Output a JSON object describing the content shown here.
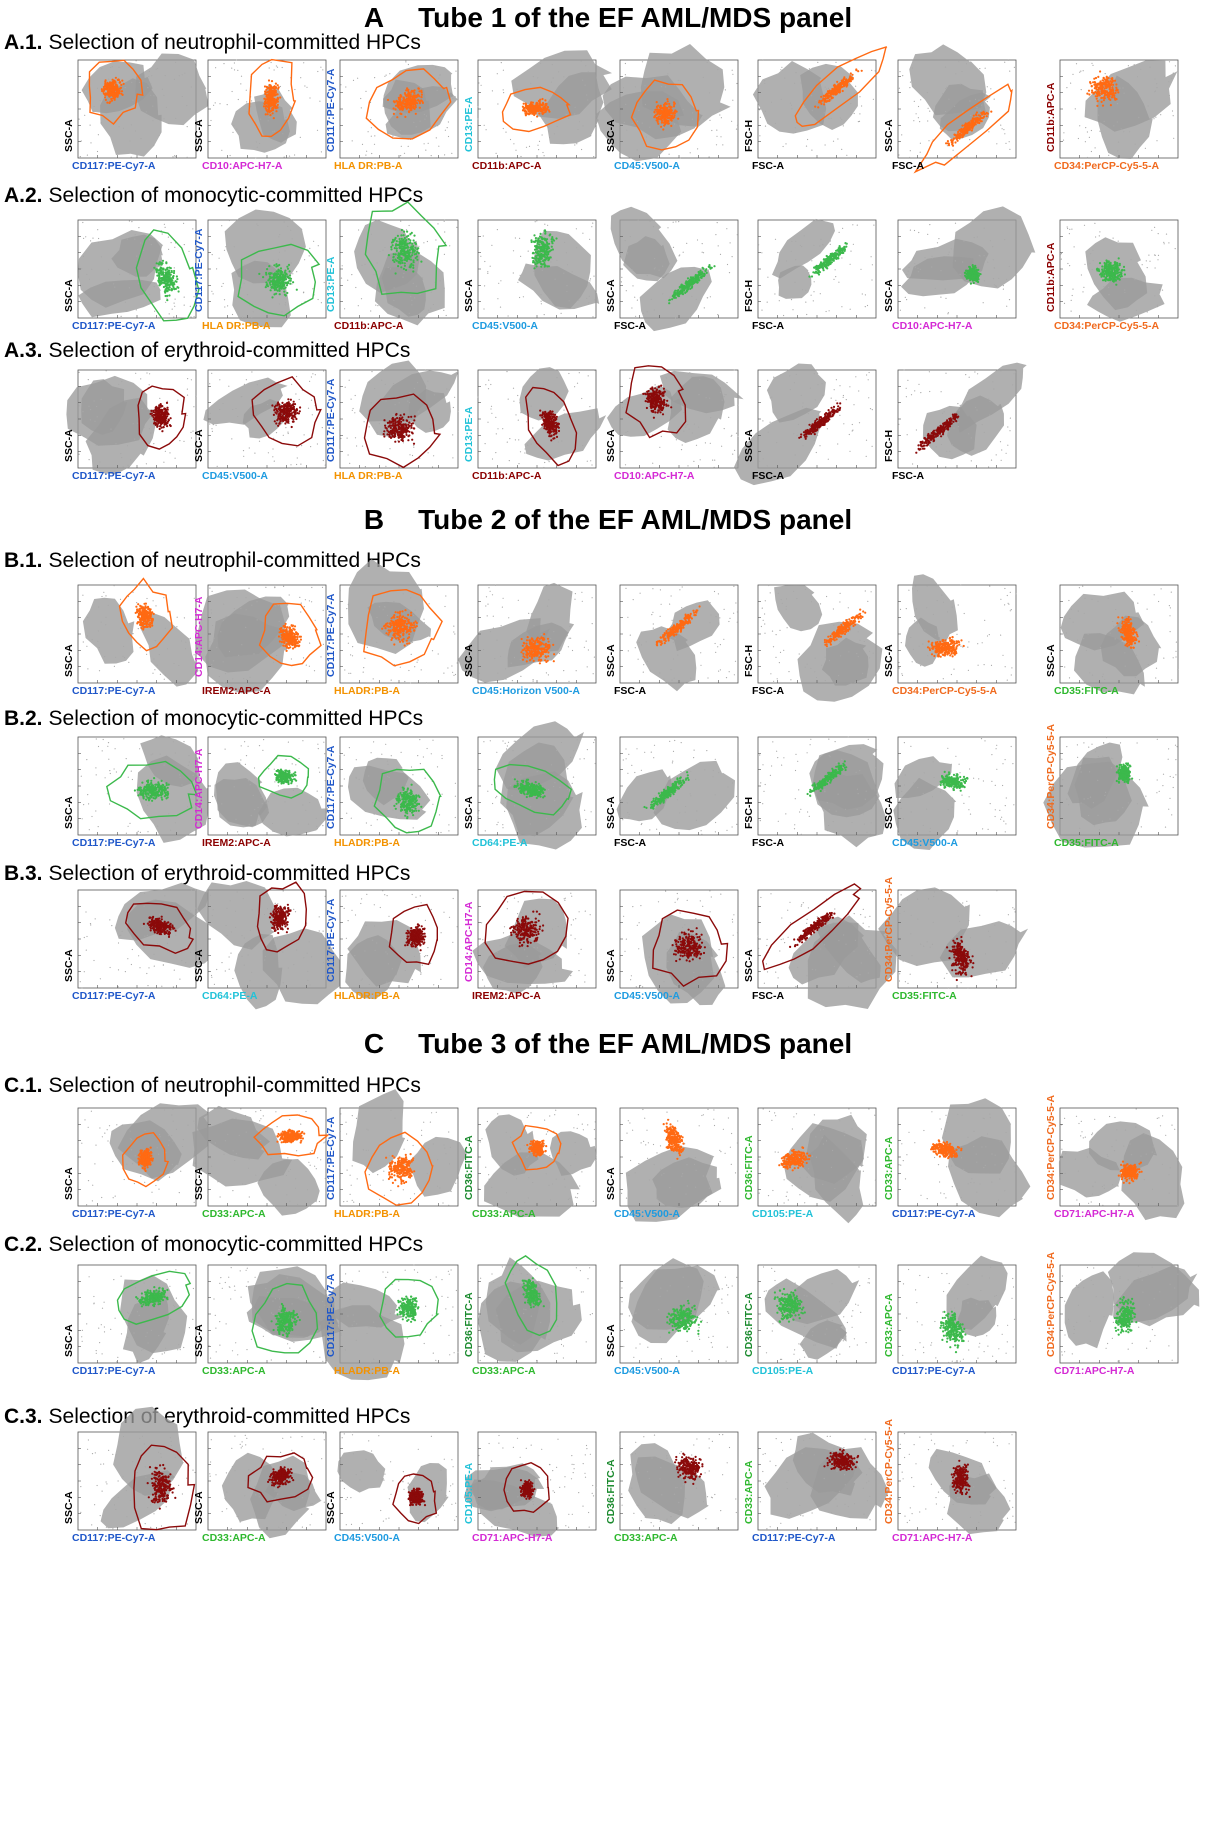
{
  "sections": [
    {
      "letter": "A",
      "title": "Tube 1 of the EF AML/MDS panel",
      "rows": [
        {
          "num": "A.1.",
          "label": "Selection of neutrophil-committed HPCs",
          "color": "#ff6a13",
          "plots": [
            {
              "x": "CD117:PE-Cy7-A",
              "xc": "#1f57c9",
              "y": "SSC-A",
              "yc": "#000000",
              "gate": true
            },
            {
              "x": "CD10:APC-H7-A",
              "xc": "#d42ad4",
              "y": "SSC-A",
              "yc": "#000000",
              "gate": true
            },
            {
              "x": "HLA DR:PB-A",
              "xc": "#f39200",
              "y": "CD117:PE-Cy7-A",
              "yc": "#1f57c9",
              "gate": true
            },
            {
              "x": "CD11b:APC-A",
              "xc": "#8b0000",
              "y": "CD13:PE-A",
              "yc": "#22c2d8",
              "gate": true
            },
            {
              "x": "CD45:V500-A",
              "xc": "#1e9be0",
              "y": "SSC-A",
              "yc": "#000000",
              "gate": true
            },
            {
              "x": "FSC-A",
              "xc": "#000000",
              "y": "FSC-H",
              "yc": "#000000",
              "gate": true
            },
            {
              "x": "FSC-A",
              "xc": "#000000",
              "y": "SSC-A",
              "yc": "#000000",
              "gate": true
            },
            {
              "x": "CD34:PerCP-Cy5-5-A",
              "xc": "#f06a1e",
              "y": "CD11b:APC-A",
              "yc": "#8b0000",
              "gate": false
            }
          ]
        },
        {
          "num": "A.2.",
          "label": "Selection of monocytic-committed HPCs",
          "color": "#3cb94c",
          "plots": [
            {
              "x": "CD117:PE-Cy7-A",
              "xc": "#1f57c9",
              "y": "SSC-A",
              "yc": "#000000",
              "gate": true
            },
            {
              "x": "HLA DR:PB-A",
              "xc": "#f39200",
              "y": "CD117:PE-Cy7-A",
              "yc": "#1f57c9",
              "gate": true
            },
            {
              "x": "CD11b:APC-A",
              "xc": "#8b0000",
              "y": "CD13:PE-A",
              "yc": "#22c2d8",
              "gate": true
            },
            {
              "x": "CD45:V500-A",
              "xc": "#1e9be0",
              "y": "SSC-A",
              "yc": "#000000",
              "gate": false
            },
            {
              "x": "FSC-A",
              "xc": "#000000",
              "y": "SSC-A",
              "yc": "#000000",
              "gate": false
            },
            {
              "x": "FSC-A",
              "xc": "#000000",
              "y": "FSC-H",
              "yc": "#000000",
              "gate": false
            },
            {
              "x": "CD10:APC-H7-A",
              "xc": "#d42ad4",
              "y": "SSC-A",
              "yc": "#000000",
              "gate": false
            },
            {
              "x": "CD34:PerCP-Cy5-5-A",
              "xc": "#f06a1e",
              "y": "CD11b:APC-A",
              "yc": "#8b0000",
              "gate": false
            }
          ]
        },
        {
          "num": "A.3.",
          "label": "Selection of erythroid-committed HPCs",
          "color": "#8b0a0a",
          "plots": [
            {
              "x": "CD117:PE-Cy7-A",
              "xc": "#1f57c9",
              "y": "SSC-A",
              "yc": "#000000",
              "gate": true
            },
            {
              "x": "CD45:V500-A",
              "xc": "#1e9be0",
              "y": "SSC-A",
              "yc": "#000000",
              "gate": true
            },
            {
              "x": "HLA DR:PB-A",
              "xc": "#f39200",
              "y": "CD117:PE-Cy7-A",
              "yc": "#1f57c9",
              "gate": true
            },
            {
              "x": "CD11b:APC-A",
              "xc": "#8b0000",
              "y": "CD13:PE-A",
              "yc": "#22c2d8",
              "gate": true
            },
            {
              "x": "CD10:APC-H7-A",
              "xc": "#d42ad4",
              "y": "SSC-A",
              "yc": "#000000",
              "gate": true
            },
            {
              "x": "FSC-A",
              "xc": "#000000",
              "y": "SSC-A",
              "yc": "#000000",
              "gate": false
            },
            {
              "x": "FSC-A",
              "xc": "#000000",
              "y": "FSC-H",
              "yc": "#000000",
              "gate": false
            }
          ]
        }
      ]
    },
    {
      "letter": "B",
      "title": "Tube 2 of the EF AML/MDS panel",
      "rows": [
        {
          "num": "B.1.",
          "label": "Selection of neutrophil-committed HPCs",
          "color": "#ff6a13",
          "plots": [
            {
              "x": "CD117:PE-Cy7-A",
              "xc": "#1f57c9",
              "y": "SSC-A",
              "yc": "#000000",
              "gate": true
            },
            {
              "x": "IREM2:APC-A",
              "xc": "#8b0000",
              "y": "CD14:APC-H7-A",
              "yc": "#d42ad4",
              "gate": true
            },
            {
              "x": "HLADR:PB-A",
              "xc": "#f39200",
              "y": "CD117:PE-Cy7-A",
              "yc": "#1f57c9",
              "gate": true
            },
            {
              "x": "CD45:Horizon V500-A",
              "xc": "#1e9be0",
              "y": "SSC-A",
              "yc": "#000000",
              "gate": false
            },
            {
              "x": "FSC-A",
              "xc": "#000000",
              "y": "SSC-A",
              "yc": "#000000",
              "gate": false
            },
            {
              "x": "FSC-A",
              "xc": "#000000",
              "y": "FSC-H",
              "yc": "#000000",
              "gate": false
            },
            {
              "x": "CD34:PerCP-Cy5-5-A",
              "xc": "#f06a1e",
              "y": "SSC-A",
              "yc": "#000000",
              "gate": false
            },
            {
              "x": "CD35:FITC-A",
              "xc": "#2fb82f",
              "y": "SSC-A",
              "yc": "#000000",
              "gate": false
            }
          ]
        },
        {
          "num": "B.2.",
          "label": "Selection of monocytic-committed HPCs",
          "color": "#3cb94c",
          "plots": [
            {
              "x": "CD117:PE-Cy7-A",
              "xc": "#1f57c9",
              "y": "SSC-A",
              "yc": "#000000",
              "gate": true
            },
            {
              "x": "IREM2:APC-A",
              "xc": "#8b0000",
              "y": "CD14:APC-H7-A",
              "yc": "#d42ad4",
              "gate": true
            },
            {
              "x": "HLADR:PB-A",
              "xc": "#f39200",
              "y": "CD117:PE-Cy7-A",
              "yc": "#1f57c9",
              "gate": true
            },
            {
              "x": "CD64:PE-A",
              "xc": "#22c2d8",
              "y": "SSC-A",
              "yc": "#000000",
              "gate": true
            },
            {
              "x": "FSC-A",
              "xc": "#000000",
              "y": "SSC-A",
              "yc": "#000000",
              "gate": false
            },
            {
              "x": "FSC-A",
              "xc": "#000000",
              "y": "FSC-H",
              "yc": "#000000",
              "gate": false
            },
            {
              "x": "CD45:V500-A",
              "xc": "#1e9be0",
              "y": "SSC-A",
              "yc": "#000000",
              "gate": false
            },
            {
              "x": "CD35:FITC-A",
              "xc": "#2fb82f",
              "y": "CD34:PerCP-Cy5-5-A",
              "yc": "#f06a1e",
              "gate": false
            }
          ]
        },
        {
          "num": "B.3.",
          "label": "Selection of erythroid-committed HPCs",
          "color": "#8b0a0a",
          "plots": [
            {
              "x": "CD117:PE-Cy7-A",
              "xc": "#1f57c9",
              "y": "SSC-A",
              "yc": "#000000",
              "gate": true
            },
            {
              "x": "CD64:PE-A",
              "xc": "#22c2d8",
              "y": "SSC-A",
              "yc": "#000000",
              "gate": true
            },
            {
              "x": "HLADR:PB-A",
              "xc": "#f39200",
              "y": "CD117:PE-Cy7-A",
              "yc": "#1f57c9",
              "gate": true
            },
            {
              "x": "IREM2:APC-A",
              "xc": "#8b0000",
              "y": "CD14:APC-H7-A",
              "yc": "#d42ad4",
              "gate": true
            },
            {
              "x": "CD45:V500-A",
              "xc": "#1e9be0",
              "y": "SSC-A",
              "yc": "#000000",
              "gate": true
            },
            {
              "x": "FSC-A",
              "xc": "#000000",
              "y": "SSC-A",
              "yc": "#000000",
              "gate": true
            },
            {
              "x": "CD35:FITC-A",
              "xc": "#2fb82f",
              "y": "CD34:PerCP-Cy5-5-A",
              "yc": "#f06a1e",
              "gate": false
            }
          ]
        }
      ]
    },
    {
      "letter": "C",
      "title": "Tube 3 of the EF AML/MDS panel",
      "rows": [
        {
          "num": "C.1.",
          "label": "Selection of neutrophil-committed HPCs",
          "color": "#ff6a13",
          "plots": [
            {
              "x": "CD117:PE-Cy7-A",
              "xc": "#1f57c9",
              "y": "SSC-A",
              "yc": "#000000",
              "gate": true
            },
            {
              "x": "CD33:APC-A",
              "xc": "#2fb82f",
              "y": "SSC-A",
              "yc": "#000000",
              "gate": true
            },
            {
              "x": "HLADR:PB-A",
              "xc": "#f39200",
              "y": "CD117:PE-Cy7-A",
              "yc": "#1f57c9",
              "gate": true
            },
            {
              "x": "CD33:APC-A",
              "xc": "#2fb82f",
              "y": "CD36:FITC-A",
              "yc": "#1b8a2e",
              "gate": true
            },
            {
              "x": "CD45:V500-A",
              "xc": "#1e9be0",
              "y": "SSC-A",
              "yc": "#000000",
              "gate": false
            },
            {
              "x": "CD105:PE-A",
              "xc": "#22c2d8",
              "y": "CD36:FITC-A",
              "yc": "#2fb82f",
              "gate": false
            },
            {
              "x": "CD117:PE-Cy7-A",
              "xc": "#1f57c9",
              "y": "CD33:APC-A",
              "yc": "#2fb82f",
              "gate": false
            },
            {
              "x": "CD71:APC-H7-A",
              "xc": "#d42ad4",
              "y": "CD34:PerCP-Cy5-5-A",
              "yc": "#f06a1e",
              "gate": false
            }
          ]
        },
        {
          "num": "C.2.",
          "label": "Selection of monocytic-committed HPCs",
          "color": "#3cb94c",
          "plots": [
            {
              "x": "CD117:PE-Cy7-A",
              "xc": "#1f57c9",
              "y": "SSC-A",
              "yc": "#000000",
              "gate": true
            },
            {
              "x": "CD33:APC-A",
              "xc": "#2fb82f",
              "y": "SSC-A",
              "yc": "#000000",
              "gate": true
            },
            {
              "x": "HLADR:PB-A",
              "xc": "#f39200",
              "y": "CD117:PE-Cy7-A",
              "yc": "#1f57c9",
              "gate": true
            },
            {
              "x": "CD33:APC-A",
              "xc": "#2fb82f",
              "y": "CD36:FITC-A",
              "yc": "#1b8a2e",
              "gate": true
            },
            {
              "x": "CD45:V500-A",
              "xc": "#1e9be0",
              "y": "SSC-A",
              "yc": "#000000",
              "gate": false
            },
            {
              "x": "CD105:PE-A",
              "xc": "#22c2d8",
              "y": "CD36:FITC-A",
              "yc": "#1b8a2e",
              "gate": false
            },
            {
              "x": "CD117:PE-Cy7-A",
              "xc": "#1f57c9",
              "y": "CD33:APC-A",
              "yc": "#2fb82f",
              "gate": false
            },
            {
              "x": "CD71:APC-H7-A",
              "xc": "#d42ad4",
              "y": "CD34:PerCP-Cy5-5-A",
              "yc": "#f06a1e",
              "gate": false
            }
          ]
        },
        {
          "num": "C.3.",
          "label": "Selection of erythroid-committed HPCs",
          "color": "#8b0a0a",
          "plots": [
            {
              "x": "CD117:PE-Cy7-A",
              "xc": "#1f57c9",
              "y": "SSC-A",
              "yc": "#000000",
              "gate": true
            },
            {
              "x": "CD33:APC-A",
              "xc": "#2fb82f",
              "y": "SSC-A",
              "yc": "#000000",
              "gate": true
            },
            {
              "x": "CD45:V500-A",
              "xc": "#1e9be0",
              "y": "SSC-A",
              "yc": "#000000",
              "gate": true
            },
            {
              "x": "CD71:APC-H7-A",
              "xc": "#d42ad4",
              "y": "CD105:PE-A",
              "yc": "#22c2d8",
              "gate": true
            },
            {
              "x": "CD33:APC-A",
              "xc": "#2fb82f",
              "y": "CD36:FITC-A",
              "yc": "#1b8a2e",
              "gate": false
            },
            {
              "x": "CD117:PE-Cy7-A",
              "xc": "#1f57c9",
              "y": "CD33:APC-A",
              "yc": "#2fb82f",
              "gate": false
            },
            {
              "x": "CD71:APC-H7-A",
              "xc": "#d42ad4",
              "y": "CD34:PerCP-Cy5-5-A",
              "yc": "#f06a1e",
              "gate": false
            }
          ]
        }
      ]
    }
  ]
}
